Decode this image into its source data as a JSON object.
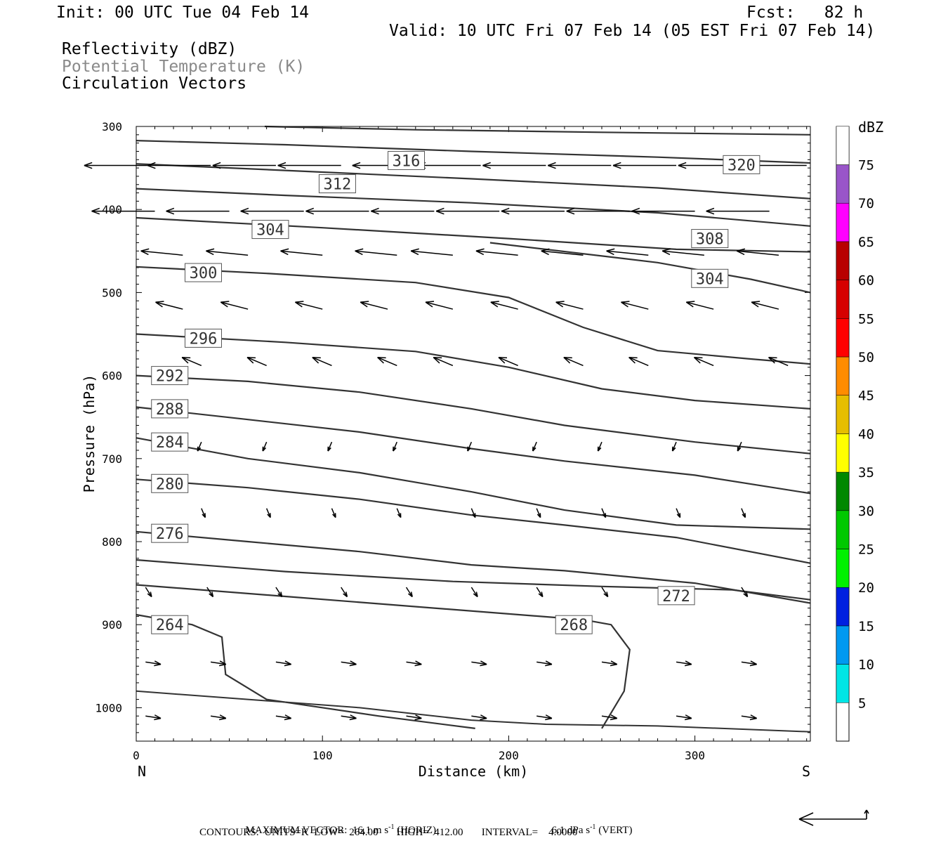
{
  "header": {
    "init": "Init: 00 UTC Tue 04 Feb 14",
    "fcst": "Fcst:   82 h",
    "valid": "Valid: 10 UTC Fri 07 Feb 14 (05 EST Fri 07 Feb 14)",
    "field1": "Reflectivity (dBZ)",
    "field2": "Potential Temperature (K)",
    "field3": "Circulation Vectors"
  },
  "footer": {
    "max_vector": "MAXIMUM VECTOR:  16.1 m s",
    "horiz_unit": "-1",
    "horiz_tag": "(HORIZ)",
    "vert_value": "6.1 dPa s",
    "vert_unit": "-1",
    "vert_tag": "(VERT)",
    "contours": "CONTOURS:  UNITS=K  LOW=  264.00       HIGH=  412.00       INTERVAL=    4.0000"
  },
  "colorbar": {
    "title": "dBZ",
    "levels": [
      "5",
      "10",
      "15",
      "20",
      "25",
      "30",
      "35",
      "40",
      "45",
      "50",
      "55",
      "60",
      "65",
      "70",
      "75"
    ],
    "colors": [
      "#00e5e5",
      "#0099f0",
      "#0020e0",
      "#00f000",
      "#00c800",
      "#008800",
      "#ffff00",
      "#e6be00",
      "#ff8c00",
      "#ff0000",
      "#d60000",
      "#b80000",
      "#ff00ff",
      "#9955c9",
      "#ffffff"
    ]
  },
  "chart_data": {
    "type": "cross-section",
    "xlabel": "Distance (km)",
    "ylabel": "Pressure (hPa)",
    "x_start_label": "N",
    "x_end_label": "S",
    "xlim": [
      0,
      362
    ],
    "ylim": [
      300,
      1040
    ],
    "xticks": [
      0,
      100,
      200,
      300
    ],
    "yticks": [
      300,
      400,
      500,
      600,
      700,
      800,
      900,
      1000
    ],
    "isentropes": [
      {
        "theta": "320",
        "label_at": [
          325,
          346
        ],
        "points": [
          [
            69,
            300
          ],
          [
            150,
            304
          ],
          [
            250,
            307
          ],
          [
            362,
            310
          ]
        ]
      },
      {
        "theta": "316",
        "label_at": [
          145,
          341
        ],
        "points": [
          [
            0,
            317
          ],
          [
            80,
            322
          ],
          [
            180,
            330
          ],
          [
            280,
            337
          ],
          [
            362,
            344
          ]
        ]
      },
      {
        "theta": "312",
        "label_at": [
          108,
          369
        ],
        "points": [
          [
            0,
            345
          ],
          [
            80,
            353
          ],
          [
            180,
            363
          ],
          [
            280,
            374
          ],
          [
            362,
            387
          ]
        ]
      },
      {
        "theta": "308",
        "label_at": [
          308,
          435
        ],
        "points": [
          [
            0,
            375
          ],
          [
            80,
            383
          ],
          [
            180,
            392
          ],
          [
            280,
            404
          ],
          [
            362,
            420
          ]
        ]
      },
      {
        "theta": "304",
        "label_at": [
          72,
          424
        ],
        "points": [
          [
            0,
            410
          ],
          [
            100,
            422
          ],
          [
            200,
            435
          ],
          [
            290,
            448
          ],
          [
            362,
            451
          ]
        ]
      },
      {
        "theta": "304",
        "label_at": [
          308,
          483
        ],
        "points": [
          [
            190,
            440
          ],
          [
            280,
            464
          ],
          [
            330,
            484
          ],
          [
            362,
            500
          ]
        ]
      },
      {
        "theta": "300",
        "label_at": [
          36,
          476
        ],
        "points": [
          [
            0,
            469
          ],
          [
            70,
            477
          ],
          [
            150,
            488
          ],
          [
            200,
            506
          ],
          [
            240,
            542
          ],
          [
            280,
            570
          ],
          [
            330,
            580
          ],
          [
            362,
            586
          ]
        ]
      },
      {
        "theta": "296",
        "label_at": [
          36,
          555
        ],
        "points": [
          [
            0,
            550
          ],
          [
            80,
            560
          ],
          [
            150,
            571
          ],
          [
            200,
            590
          ],
          [
            250,
            616
          ],
          [
            300,
            630
          ],
          [
            362,
            640
          ]
        ]
      },
      {
        "theta": "292",
        "label_at": [
          18,
          600
        ],
        "points": [
          [
            0,
            600
          ],
          [
            60,
            607
          ],
          [
            120,
            620
          ],
          [
            180,
            640
          ],
          [
            230,
            660
          ],
          [
            300,
            680
          ],
          [
            362,
            694
          ]
        ]
      },
      {
        "theta": "288",
        "label_at": [
          18,
          640
        ],
        "points": [
          [
            0,
            638
          ],
          [
            60,
            653
          ],
          [
            120,
            668
          ],
          [
            180,
            688
          ],
          [
            230,
            703
          ],
          [
            300,
            720
          ],
          [
            362,
            742
          ]
        ]
      },
      {
        "theta": "284",
        "label_at": [
          18,
          680
        ],
        "points": [
          [
            0,
            675
          ],
          [
            60,
            700
          ],
          [
            120,
            717
          ],
          [
            180,
            740
          ],
          [
            230,
            762
          ],
          [
            290,
            780
          ],
          [
            362,
            785
          ]
        ]
      },
      {
        "theta": "280",
        "label_at": [
          18,
          730
        ],
        "points": [
          [
            0,
            725
          ],
          [
            60,
            735
          ],
          [
            120,
            749
          ],
          [
            180,
            768
          ],
          [
            230,
            780
          ],
          [
            290,
            795
          ],
          [
            362,
            826
          ]
        ]
      },
      {
        "theta": "276",
        "label_at": [
          18,
          790
        ],
        "points": [
          [
            0,
            788
          ],
          [
            60,
            800
          ],
          [
            120,
            812
          ],
          [
            180,
            828
          ],
          [
            230,
            835
          ],
          [
            300,
            850
          ],
          [
            362,
            874
          ]
        ]
      },
      {
        "theta": "272",
        "label_at": [
          290,
          865
        ],
        "points": [
          [
            0,
            822
          ],
          [
            80,
            836
          ],
          [
            170,
            848
          ],
          [
            250,
            854
          ],
          [
            320,
            858
          ],
          [
            362,
            870
          ]
        ]
      },
      {
        "theta": "268",
        "label_at": [
          235,
          900
        ],
        "points": [
          [
            0,
            852
          ],
          [
            80,
            866
          ],
          [
            160,
            880
          ],
          [
            240,
            894
          ],
          [
            255,
            900
          ],
          [
            265,
            930
          ],
          [
            262,
            980
          ],
          [
            250,
            1025
          ]
        ]
      },
      {
        "theta": "264",
        "label_at": [
          18,
          900
        ],
        "points": [
          [
            0,
            888
          ],
          [
            30,
            900
          ],
          [
            46,
            915
          ],
          [
            48,
            960
          ],
          [
            70,
            990
          ],
          [
            130,
            1010
          ],
          [
            182,
            1025
          ]
        ]
      }
    ],
    "surface": [
      [
        0,
        980
      ],
      [
        60,
        990
      ],
      [
        120,
        1000
      ],
      [
        180,
        1015
      ],
      [
        220,
        1020
      ],
      [
        280,
        1022
      ],
      [
        362,
        1029
      ]
    ],
    "vectors": [
      {
        "row": 347,
        "x": [
          6,
          40,
          75,
          110,
          150,
          185,
          220,
          255,
          290,
          325,
          360
        ]
      },
      {
        "row": 402,
        "x": [
          10,
          50,
          90,
          125,
          160,
          195,
          230,
          265,
          300,
          340
        ]
      },
      {
        "row": 455,
        "x": [
          25,
          60,
          100,
          140,
          170,
          205,
          240,
          275,
          305,
          345
        ]
      },
      {
        "row": 520,
        "x": [
          25,
          60,
          100,
          135,
          170,
          205,
          240,
          275,
          310,
          345
        ]
      },
      {
        "row": 588,
        "x": [
          35,
          70,
          105,
          140,
          170,
          205,
          240,
          275,
          310,
          350
        ]
      },
      {
        "row": 680,
        "x": [
          35,
          70,
          105,
          140,
          180,
          215,
          250,
          290,
          325
        ]
      },
      {
        "row": 760,
        "x": [
          35,
          70,
          105,
          140,
          180,
          215,
          250,
          290,
          325
        ]
      },
      {
        "row": 855,
        "x": [
          5,
          38,
          75,
          110,
          145,
          180,
          215,
          250,
          290,
          325
        ]
      },
      {
        "row": 945,
        "x": [
          5,
          40,
          75,
          110,
          145,
          180,
          215,
          250,
          290,
          325
        ]
      },
      {
        "row": 1010,
        "x": [
          5,
          40,
          75,
          110,
          145,
          180,
          215,
          250,
          290,
          325
        ]
      }
    ]
  }
}
